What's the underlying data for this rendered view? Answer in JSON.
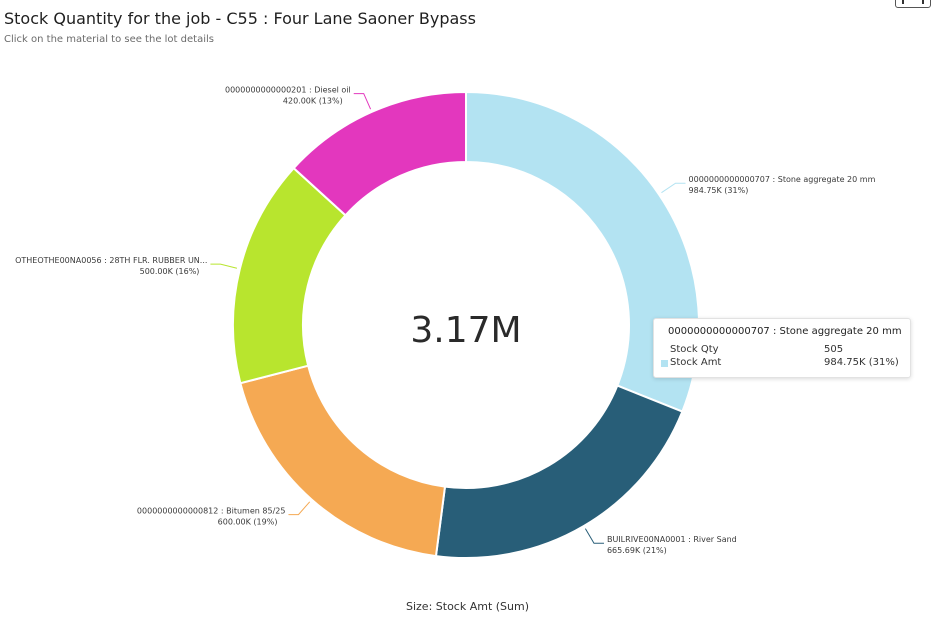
{
  "title": "Stock Quantity for the job - C55 : Four Lane Saoner Bypass",
  "subtitle": "Click on the material to see the lot details",
  "footer": "Size: Stock Amt (Sum)",
  "chart_data": {
    "type": "pie",
    "variant": "donut",
    "center_label": "3.17M",
    "measure": "Stock Amt (Sum)",
    "slices": [
      {
        "name": "0000000000000707 : Stone aggregate 20 mm",
        "value": 984.75,
        "value_label": "984.75K (31%)",
        "percent": 31,
        "color": "#b3e3f2"
      },
      {
        "name": "BUILRIVE00NA0001 : River Sand",
        "value": 665.69,
        "value_label": "665.69K (21%)",
        "percent": 21,
        "color": "#285e78"
      },
      {
        "name": "0000000000000812 : Bitumen 85/25",
        "value": 600.0,
        "value_label": "600.00K (19%)",
        "percent": 19,
        "color": "#f5a953"
      },
      {
        "name": "OTHEOTHE00NA0056 : 28TH FLR. RUBBER UN...",
        "value": 500.0,
        "value_label": "500.00K (16%)",
        "percent": 16,
        "color": "#b8e52e"
      },
      {
        "name": "0000000000000201 : Diesel oil",
        "value": 420.0,
        "value_label": "420.00K (13%)",
        "percent": 13,
        "color": "#e337be"
      }
    ]
  },
  "tooltip": {
    "title": "0000000000000707 : Stone aggregate 20 mm",
    "rows": [
      {
        "label": "Stock Qty",
        "value": "505"
      },
      {
        "label": "Stock Amt",
        "value": "984.75K (31%)"
      }
    ],
    "swatch_color": "#b3e3f2"
  }
}
